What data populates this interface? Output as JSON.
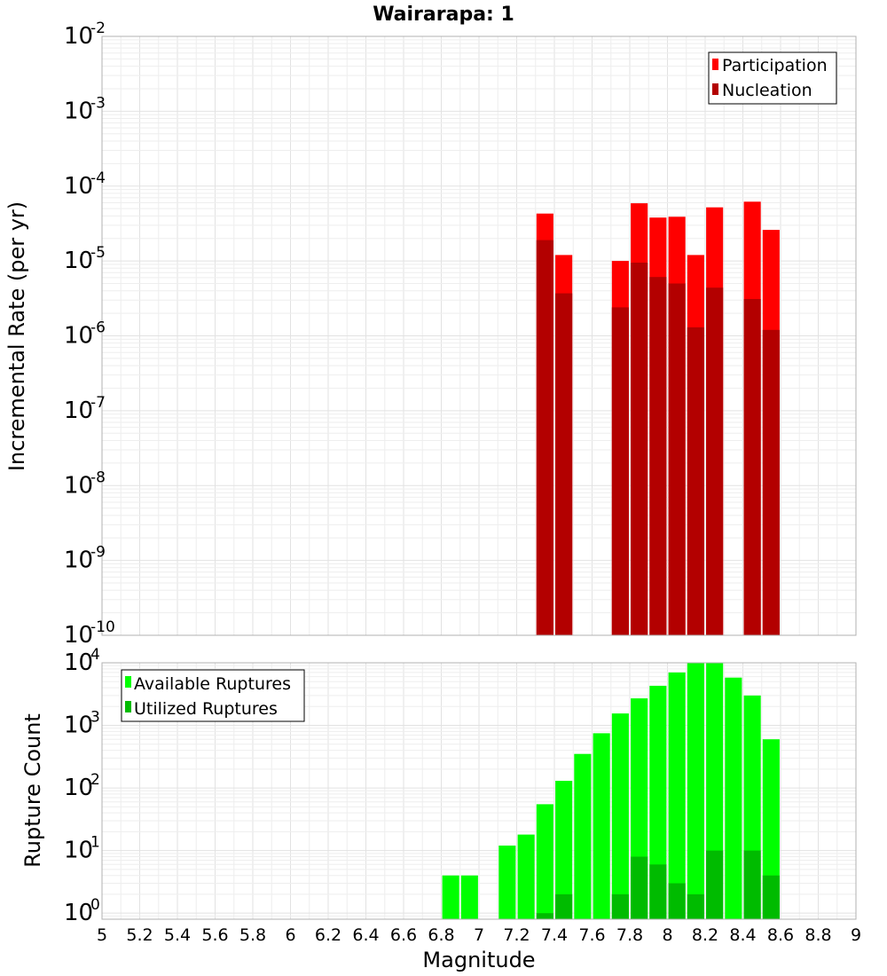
{
  "chart_data": [
    {
      "id": "rate",
      "type": "bar",
      "title": "Wairarapa: 1",
      "xlabel": "",
      "ylabel": "Incremental Rate (per yr)",
      "yscale": "log",
      "xlim": [
        5,
        9
      ],
      "ylim": [
        1e-10,
        0.01
      ],
      "y_ticks": [
        {
          "base": "10",
          "exp": "-10"
        },
        {
          "base": "10",
          "exp": "-9"
        },
        {
          "base": "10",
          "exp": "-8"
        },
        {
          "base": "10",
          "exp": "-7"
        },
        {
          "base": "10",
          "exp": "-6"
        },
        {
          "base": "10",
          "exp": "-5"
        },
        {
          "base": "10",
          "exp": "-4"
        },
        {
          "base": "10",
          "exp": "-3"
        },
        {
          "base": "10",
          "exp": "-2"
        }
      ],
      "bar_width": 0.09,
      "legend_position": "top-right",
      "series": [
        {
          "name": "Participation",
          "color": "#ff0000",
          "x": [
            7.35,
            7.45,
            7.75,
            7.85,
            7.95,
            8.05,
            8.15,
            8.25,
            8.45,
            8.55
          ],
          "values": [
            4.3e-05,
            1.2e-05,
            1e-05,
            5.9e-05,
            3.8e-05,
            3.9e-05,
            1.2e-05,
            5.2e-05,
            6.2e-05,
            2.6e-05
          ]
        },
        {
          "name": "Nucleation",
          "color": "#b30000",
          "x": [
            7.35,
            7.45,
            7.75,
            7.85,
            7.95,
            8.05,
            8.15,
            8.25,
            8.45,
            8.55
          ],
          "values": [
            1.9e-05,
            3.7e-06,
            2.4e-06,
            9.5e-06,
            6.1e-06,
            5e-06,
            1.3e-06,
            4.4e-06,
            3.1e-06,
            1.2e-06
          ]
        }
      ]
    },
    {
      "id": "count",
      "type": "bar",
      "title": "",
      "xlabel": "Magnitude",
      "ylabel": "Rupture Count",
      "yscale": "log",
      "xlim": [
        5,
        9
      ],
      "ylim": [
        0.8,
        10000
      ],
      "x_ticks": [
        "5",
        "5.2",
        "5.4",
        "5.6",
        "5.8",
        "6",
        "6.2",
        "6.4",
        "6.6",
        "6.8",
        "7",
        "7.2",
        "7.4",
        "7.6",
        "7.8",
        "8",
        "8.2",
        "8.4",
        "8.6",
        "8.8",
        "9"
      ],
      "y_ticks": [
        {
          "base": "10",
          "exp": "0"
        },
        {
          "base": "10",
          "exp": "1"
        },
        {
          "base": "10",
          "exp": "2"
        },
        {
          "base": "10",
          "exp": "3"
        },
        {
          "base": "10",
          "exp": "4"
        }
      ],
      "bar_width": 0.09,
      "legend_position": "top-left",
      "series": [
        {
          "name": "Available Ruptures",
          "color": "#00ff00",
          "x": [
            6.85,
            6.95,
            7.15,
            7.25,
            7.35,
            7.45,
            7.55,
            7.65,
            7.75,
            7.85,
            7.95,
            8.05,
            8.15,
            8.25,
            8.35,
            8.45,
            8.55
          ],
          "values": [
            4,
            4,
            12,
            18,
            55,
            130,
            350,
            750,
            1550,
            2700,
            4300,
            7000,
            10000,
            10000,
            5800,
            3000,
            600
          ]
        },
        {
          "name": "Utilized Ruptures",
          "color": "#00bb00",
          "x": [
            7.35,
            7.45,
            7.75,
            7.85,
            7.95,
            8.05,
            8.15,
            8.25,
            8.45,
            8.55
          ],
          "values": [
            1,
            2,
            2,
            8,
            6,
            3,
            2,
            10,
            10,
            4
          ]
        }
      ]
    }
  ]
}
